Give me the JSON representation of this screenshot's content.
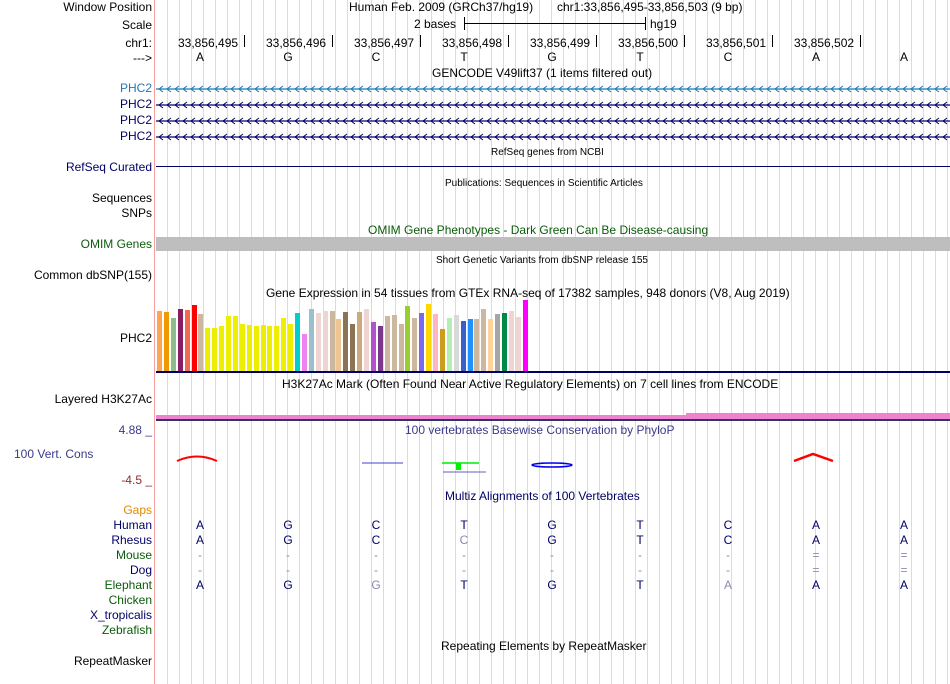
{
  "header": {
    "window_position_label": "Window Position",
    "assembly": "Human Feb. 2009 (GRCh37/hg19)",
    "position": "chr1:33,856,495-33,856,503 (9 bp)",
    "scale_label": "Scale",
    "scale_value": "2 bases",
    "scale_db": "hg19",
    "chrom_label": "chr1:",
    "strand_label": "--->",
    "coordinates": [
      "33,856,495",
      "33,856,496",
      "33,856,497",
      "33,856,498",
      "33,856,499",
      "33,856,500",
      "33,856,501",
      "33,856,502"
    ],
    "bases": [
      "A",
      "G",
      "C",
      "T",
      "G",
      "T",
      "C",
      "A",
      "A"
    ]
  },
  "tracks": {
    "gencode": {
      "title": "GENCODE V49lift37 (1 items filtered out)",
      "genes": [
        {
          "name": "PHC2",
          "color": "#1f78b4"
        },
        {
          "name": "PHC2",
          "color": "#000066"
        },
        {
          "name": "PHC2",
          "color": "#000066"
        },
        {
          "name": "PHC2",
          "color": "#000066"
        }
      ]
    },
    "refseq": {
      "title": "RefSeq genes from NCBI",
      "label": "RefSeq Curated"
    },
    "publications": {
      "title": "Publications: Sequences in Scientific Articles",
      "labels": [
        "Sequences",
        "SNPs"
      ]
    },
    "omim": {
      "title": "OMIM Gene Phenotypes - Dark Green Can Be Disease-causing",
      "label": "OMIM Genes"
    },
    "dbsnp": {
      "title": "Short Genetic Variants from dbSNP release 155",
      "label": "Common dbSNP(155)"
    },
    "gtex": {
      "title": "Gene Expression in 54 tissues from GTEx RNA-seq of 17382 samples, 948 donors (V8, Aug 2019)",
      "label": "PHC2",
      "bars": [
        {
          "c": "#ffa54f",
          "v": 0.84
        },
        {
          "c": "#ee9a00",
          "v": 0.83
        },
        {
          "c": "#8fbc8f",
          "v": 0.75
        },
        {
          "c": "#8b1c62",
          "v": 0.87
        },
        {
          "c": "#ee6a50",
          "v": 0.86
        },
        {
          "c": "#ff0000",
          "v": 0.93
        },
        {
          "c": "#cdb79e",
          "v": 0.8
        },
        {
          "c": "#eeee00",
          "v": 0.6
        },
        {
          "c": "#eeee00",
          "v": 0.61
        },
        {
          "c": "#eeee00",
          "v": 0.64
        },
        {
          "c": "#eeee00",
          "v": 0.77
        },
        {
          "c": "#eeee00",
          "v": 0.78
        },
        {
          "c": "#eeee00",
          "v": 0.66
        },
        {
          "c": "#eeee00",
          "v": 0.65
        },
        {
          "c": "#eeee00",
          "v": 0.64
        },
        {
          "c": "#eeee00",
          "v": 0.65
        },
        {
          "c": "#eeee00",
          "v": 0.63
        },
        {
          "c": "#eeee00",
          "v": 0.63
        },
        {
          "c": "#eeee00",
          "v": 0.74
        },
        {
          "c": "#eeee00",
          "v": 0.66
        },
        {
          "c": "#00cdcd",
          "v": 0.82
        },
        {
          "c": "#ee82ee",
          "v": 0.52
        },
        {
          "c": "#9ac0cd",
          "v": 0.87
        },
        {
          "c": "#eed5d2",
          "v": 0.82
        },
        {
          "c": "#eed5d2",
          "v": 0.84
        },
        {
          "c": "#cdb79e",
          "v": 0.84
        },
        {
          "c": "#eec591",
          "v": 0.73
        },
        {
          "c": "#8b7355",
          "v": 0.83
        },
        {
          "c": "#8b7355",
          "v": 0.66
        },
        {
          "c": "#cdaa7d",
          "v": 0.83
        },
        {
          "c": "#eed5d2",
          "v": 0.87
        },
        {
          "c": "#b452cd",
          "v": 0.69
        },
        {
          "c": "#7a378b",
          "v": 0.64
        },
        {
          "c": "#cdb79e",
          "v": 0.77
        },
        {
          "c": "#cdb79e",
          "v": 0.79
        },
        {
          "c": "#cdb79e",
          "v": 0.66
        },
        {
          "c": "#9acd32",
          "v": 0.91
        },
        {
          "c": "#cdb79e",
          "v": 0.74
        },
        {
          "c": "#7b68ee",
          "v": 0.82
        },
        {
          "c": "#ffd700",
          "v": 0.94
        },
        {
          "c": "#ffb6c1",
          "v": 0.8
        },
        {
          "c": "#cd9b1d",
          "v": 0.59
        },
        {
          "c": "#b4eeb4",
          "v": 0.74
        },
        {
          "c": "#d9d9d9",
          "v": 0.79
        },
        {
          "c": "#3a5fcd",
          "v": 0.7
        },
        {
          "c": "#1e90ff",
          "v": 0.73
        },
        {
          "c": "#cdb79e",
          "v": 0.73
        },
        {
          "c": "#cdb79e",
          "v": 0.87
        },
        {
          "c": "#ffd39b",
          "v": 0.73
        },
        {
          "c": "#a6a6a6",
          "v": 0.8
        },
        {
          "c": "#008b45",
          "v": 0.82
        },
        {
          "c": "#eed5d2",
          "v": 0.84
        },
        {
          "c": "#eed5d2",
          "v": 0.76
        },
        {
          "c": "#ff00ff",
          "v": 1.0
        }
      ]
    },
    "h3k27ac": {
      "title": "H3K27Ac Mark (Often Found Near Active Regulatory Elements) on 7 cell lines from ENCODE",
      "label": "Layered H3K27Ac"
    },
    "phylop": {
      "title": "100 vertebrates Basewise Conservation by PhyloP",
      "label": "100 Vert. Cons",
      "max": "4.88 _",
      "min": "-4.5 _"
    },
    "multiz": {
      "title": "Multiz Alignments of 100 Vertebrates",
      "gaps_label": "Gaps",
      "species": [
        {
          "name": "Human",
          "color": "#000066",
          "bases": [
            "A",
            "G",
            "C",
            "T",
            "G",
            "T",
            "C",
            "A",
            "A"
          ]
        },
        {
          "name": "Rhesus",
          "color": "#000066",
          "bases": [
            "A",
            "G",
            "C",
            "C",
            "G",
            "T",
            "C",
            "A",
            "A"
          ]
        },
        {
          "name": "Mouse",
          "color": "#0a5c0a",
          "bases": [
            "-",
            "-",
            "-",
            "-",
            "-",
            "-",
            "-",
            "=",
            "="
          ]
        },
        {
          "name": "Dog",
          "color": "#000066",
          "bases": [
            "-",
            "-",
            "-",
            "-",
            "-",
            "-",
            "-",
            "=",
            "="
          ]
        },
        {
          "name": "Elephant",
          "color": "#0a5c0a",
          "bases": [
            "A",
            "G",
            "G",
            "T",
            "G",
            "T",
            "A",
            "A",
            "A"
          ]
        },
        {
          "name": "Chicken",
          "color": "#0a5c0a",
          "bases": []
        },
        {
          "name": "X_tropicalis",
          "color": "#000066",
          "bases": []
        },
        {
          "name": "Zebrafish",
          "color": "#0a5c0a",
          "bases": []
        }
      ],
      "faded": {
        "Rhesus": [
          3
        ],
        "Elephant": [
          2,
          6
        ]
      }
    },
    "repeatmasker": {
      "title": "Repeating Elements by RepeatMasker",
      "label": "RepeatMasker"
    }
  }
}
